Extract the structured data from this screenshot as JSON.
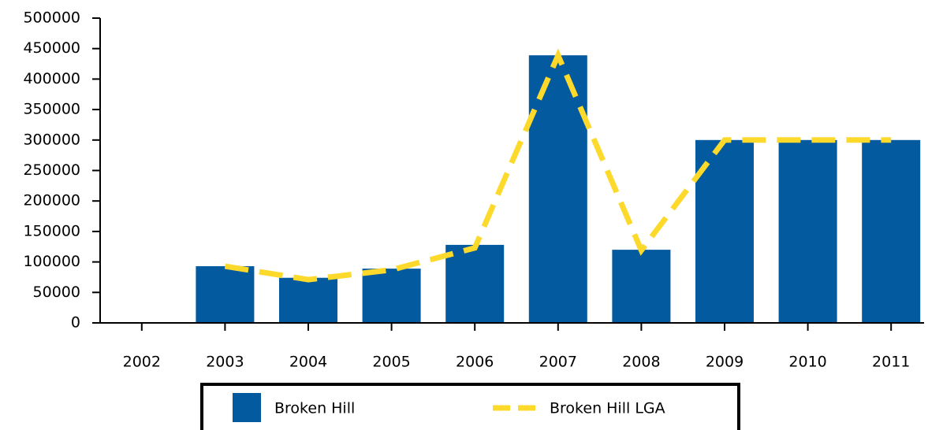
{
  "chart_data": {
    "type": "bar_line",
    "categories": [
      "2002",
      "2003",
      "2004",
      "2005",
      "2006",
      "2007",
      "2008",
      "2009",
      "2010",
      "2011"
    ],
    "series": [
      {
        "name": "Broken Hill",
        "color": "#045a9e",
        "kind": "bar",
        "values": [
          null,
          93000,
          74000,
          89000,
          128000,
          439000,
          120000,
          300000,
          300000,
          300000
        ]
      },
      {
        "name": "Broken Hill LGA",
        "color": "#fcd92a",
        "kind": "line",
        "values": [
          null,
          93000,
          71000,
          87000,
          123000,
          439000,
          119000,
          300000,
          300000,
          300000
        ]
      }
    ],
    "ylim": [
      0,
      500000
    ],
    "yticks": [
      0,
      50000,
      100000,
      150000,
      200000,
      250000,
      300000,
      350000,
      400000,
      450000,
      500000
    ],
    "legend": "bottom"
  }
}
